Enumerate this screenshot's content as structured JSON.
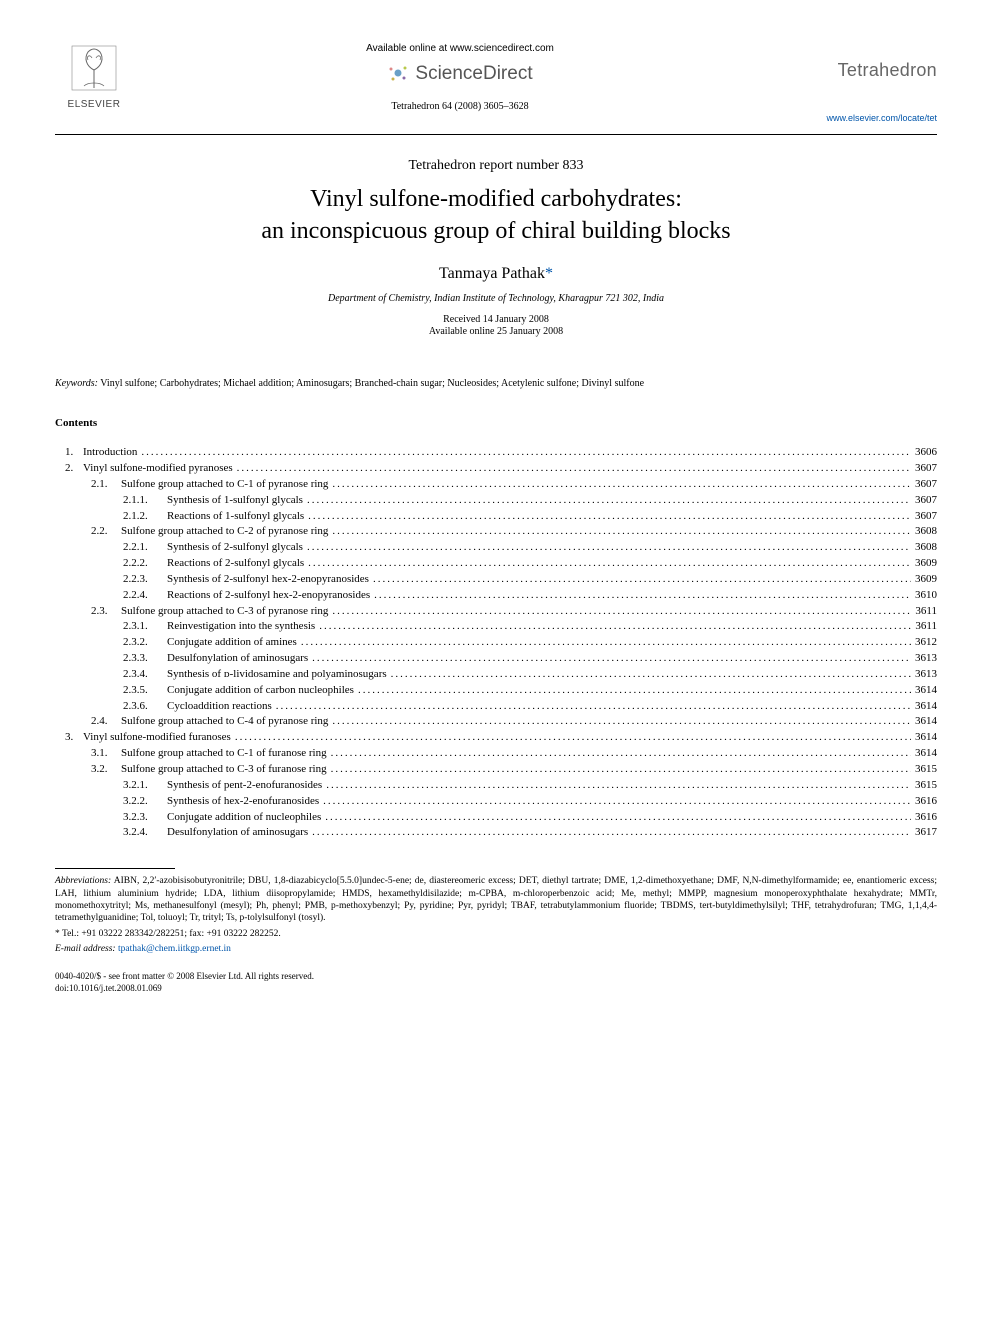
{
  "header": {
    "publisher": "ELSEVIER",
    "available": "Available online at www.sciencedirect.com",
    "sd": "ScienceDirect",
    "journal_ref": "Tetrahedron 64 (2008) 3605–3628",
    "journal_name": "Tetrahedron",
    "journal_url": "www.elsevier.com/locate/tet"
  },
  "report_number": "Tetrahedron report number 833",
  "title_l1": "Vinyl sulfone-modified carbohydrates:",
  "title_l2": "an inconspicuous group of chiral building blocks",
  "author": "Tanmaya Pathak",
  "affiliation": "Department of Chemistry, Indian Institute of Technology, Kharagpur 721 302, India",
  "received": "Received 14 January 2008",
  "available_date": "Available online 25 January 2008",
  "keywords_label": "Keywords:",
  "keywords": "Vinyl sulfone; Carbohydrates; Michael addition; Aminosugars; Branched-chain sugar; Nucleosides; Acetylenic sulfone; Divinyl sulfone",
  "contents_heading": "Contents",
  "toc": [
    {
      "lvl": 1,
      "num": "1.",
      "label": "Introduction",
      "page": "3606"
    },
    {
      "lvl": 1,
      "num": "2.",
      "label": "Vinyl sulfone-modified pyranoses",
      "page": "3607"
    },
    {
      "lvl": 2,
      "num": "2.1.",
      "label": "Sulfone group attached to C-1 of pyranose ring",
      "page": "3607"
    },
    {
      "lvl": 3,
      "num": "2.1.1.",
      "label": "Synthesis of 1-sulfonyl glycals",
      "page": "3607"
    },
    {
      "lvl": 3,
      "num": "2.1.2.",
      "label": "Reactions of 1-sulfonyl glycals",
      "page": "3607"
    },
    {
      "lvl": 2,
      "num": "2.2.",
      "label": "Sulfone group attached to C-2 of pyranose ring",
      "page": "3608"
    },
    {
      "lvl": 3,
      "num": "2.2.1.",
      "label": "Synthesis of 2-sulfonyl glycals",
      "page": "3608"
    },
    {
      "lvl": 3,
      "num": "2.2.2.",
      "label": "Reactions of 2-sulfonyl glycals",
      "page": "3609"
    },
    {
      "lvl": 3,
      "num": "2.2.3.",
      "label": "Synthesis of 2-sulfonyl hex-2-enopyranosides",
      "page": "3609"
    },
    {
      "lvl": 3,
      "num": "2.2.4.",
      "label": "Reactions of 2-sulfonyl hex-2-enopyranosides",
      "page": "3610"
    },
    {
      "lvl": 2,
      "num": "2.3.",
      "label": "Sulfone group attached to C-3 of pyranose ring",
      "page": "3611"
    },
    {
      "lvl": 3,
      "num": "2.3.1.",
      "label": "Reinvestigation into the synthesis",
      "page": "3611"
    },
    {
      "lvl": 3,
      "num": "2.3.2.",
      "label": "Conjugate addition of amines",
      "page": "3612"
    },
    {
      "lvl": 3,
      "num": "2.3.3.",
      "label": "Desulfonylation of aminosugars",
      "page": "3613"
    },
    {
      "lvl": 3,
      "num": "2.3.4.",
      "label": "Synthesis of ᴅ-lividosamine and polyaminosugars",
      "page": "3613"
    },
    {
      "lvl": 3,
      "num": "2.3.5.",
      "label": "Conjugate addition of carbon nucleophiles",
      "page": "3614"
    },
    {
      "lvl": 3,
      "num": "2.3.6.",
      "label": "Cycloaddition reactions",
      "page": "3614"
    },
    {
      "lvl": 2,
      "num": "2.4.",
      "label": "Sulfone group attached to C-4 of pyranose ring",
      "page": "3614"
    },
    {
      "lvl": 1,
      "num": "3.",
      "label": "Vinyl sulfone-modified furanoses",
      "page": "3614"
    },
    {
      "lvl": 2,
      "num": "3.1.",
      "label": "Sulfone group attached to C-1 of furanose ring",
      "page": "3614"
    },
    {
      "lvl": 2,
      "num": "3.2.",
      "label": "Sulfone group attached to C-3 of furanose ring",
      "page": "3615"
    },
    {
      "lvl": 3,
      "num": "3.2.1.",
      "label": "Synthesis of pent-2-enofuranosides",
      "page": "3615"
    },
    {
      "lvl": 3,
      "num": "3.2.2.",
      "label": "Synthesis of hex-2-enofuranosides",
      "page": "3616"
    },
    {
      "lvl": 3,
      "num": "3.2.3.",
      "label": "Conjugate addition of nucleophiles",
      "page": "3616"
    },
    {
      "lvl": 3,
      "num": "3.2.4.",
      "label": "Desulfonylation of aminosugars",
      "page": "3617"
    }
  ],
  "footnotes": {
    "abbrev_label": "Abbreviations:",
    "abbrev_text": "AIBN, 2,2′-azobisisobutyronitrile; DBU, 1,8-diazabicyclo[5.5.0]undec-5-ene; de, diastereomeric excess; DET, diethyl tartrate; DME, 1,2-dimethoxyethane; DMF, N,N-dimethylformamide; ee, enantiomeric excess; LAH, lithium aluminium hydride; LDA, lithium diisopropylamide; HMDS, hexamethyldisilazide; m-CPBA, m-chloroperbenzoic acid; Me, methyl; MMPP, magnesium monoperoxyphthalate hexahydrate; MMTr, monomethoxytrityl; Ms, methanesulfonyl (mesyl); Ph, phenyl; PMB, p-methoxybenzyl; Py, pyridine; Pyr, pyridyl; TBAF, tetrabutylammonium fluoride; TBDMS, tert-butyldimethylsilyl; THF, tetrahydrofuran; TMG, 1,1,4,4-tetramethylguanidine; Tol, toluoyl; Tr, trityl; Ts, p-tolylsulfonyl (tosyl).",
    "corr": "* Tel.: +91 03222 283342/282251; fax: +91 03222 282252.",
    "email_label": "E-mail address:",
    "email": "tpathak@chem.iitkgp.ernet.in"
  },
  "bottom": {
    "copyright": "0040-4020/$ - see front matter © 2008 Elsevier Ltd. All rights reserved.",
    "doi": "doi:10.1016/j.tet.2008.01.069"
  },
  "colors": {
    "link": "#0055aa",
    "muted": "#666666",
    "text": "#000000",
    "bg": "#ffffff"
  }
}
